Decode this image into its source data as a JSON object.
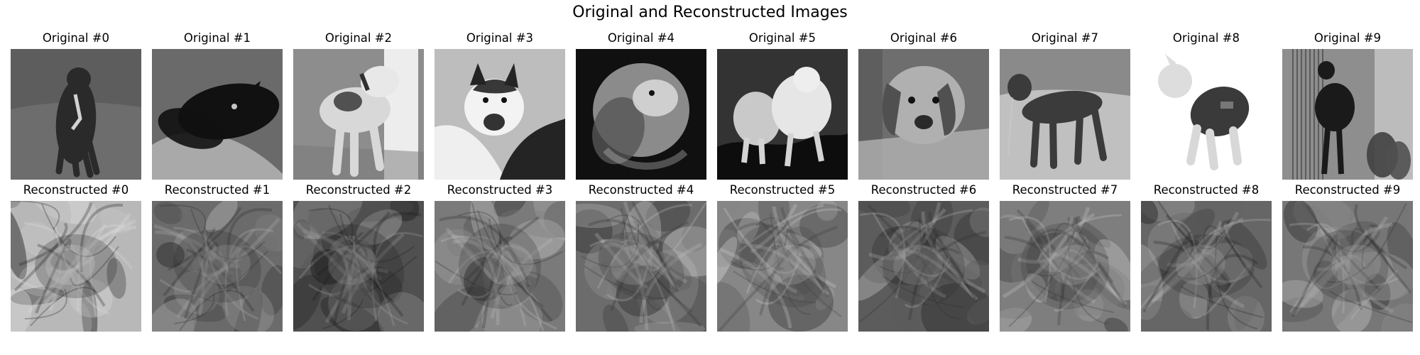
{
  "figure": {
    "title": "Original and Reconstructed Images"
  },
  "originals": [
    {
      "label": "Original #0",
      "subject": "dark greyhound-like dog walking on grass",
      "tone": [
        "#5d5d5d",
        "#7a7a7a",
        "#2a2a2a"
      ]
    },
    {
      "label": "Original #1",
      "subject": "black dog lying behind a light cushion",
      "tone": [
        "#6a6a6a",
        "#a9a9a9",
        "#111111"
      ]
    },
    {
      "label": "Original #2",
      "subject": "white dog with dark collar standing indoors",
      "tone": [
        "#8d8d8d",
        "#d8d8d8",
        "#2f2f2f"
      ]
    },
    {
      "label": "Original #3",
      "subject": "husky lying on white bedding",
      "tone": [
        "#bdbdbd",
        "#efefef",
        "#242424"
      ]
    },
    {
      "label": "Original #4",
      "subject": "golden retriever head on dark background",
      "tone": [
        "#101010",
        "#8b8b8b",
        "#d6d6d6"
      ]
    },
    {
      "label": "Original #5",
      "subject": "small white dog on dark rocks",
      "tone": [
        "#333333",
        "#c9c9c9",
        "#0d0d0d"
      ]
    },
    {
      "label": "Original #6",
      "subject": "basset-type dog sitting on a rug",
      "tone": [
        "#6e6e6e",
        "#b8b8b8",
        "#505050"
      ]
    },
    {
      "label": "Original #7",
      "subject": "long-haired dog standing in a field",
      "tone": [
        "#8a8a8a",
        "#d2d2d2",
        "#3b3b3b"
      ]
    },
    {
      "label": "Original #8",
      "subject": "small fluffy dog wearing a dark coat",
      "tone": [
        "#ffffff",
        "#dddddd",
        "#3a3a3a"
      ]
    },
    {
      "label": "Original #9",
      "subject": "dark dog standing in doorway",
      "tone": [
        "#8e8e8e",
        "#bdbdbd",
        "#1a1a1a"
      ]
    }
  ],
  "reconstructions": [
    {
      "label": "Reconstructed #0",
      "tone": [
        "#b8b8b8",
        "#e0e0e0",
        "#1e1e1e"
      ]
    },
    {
      "label": "Reconstructed #1",
      "tone": [
        "#6b6b6b",
        "#b0b0b0",
        "#2a2a2a"
      ]
    },
    {
      "label": "Reconstructed #2",
      "tone": [
        "#505050",
        "#a3a3a3",
        "#1c1c1c"
      ]
    },
    {
      "label": "Reconstructed #3",
      "tone": [
        "#7a7a7a",
        "#bdbdbd",
        "#2b2b2b"
      ]
    },
    {
      "label": "Reconstructed #4",
      "tone": [
        "#6c6c6c",
        "#c0c0c0",
        "#333333"
      ]
    },
    {
      "label": "Reconstructed #5",
      "tone": [
        "#878787",
        "#d0d0d0",
        "#3d3d3d"
      ]
    },
    {
      "label": "Reconstructed #6",
      "tone": [
        "#5c5c5c",
        "#b6b6b6",
        "#2d2d2d"
      ]
    },
    {
      "label": "Reconstructed #7",
      "tone": [
        "#7e7e7e",
        "#c9c9c9",
        "#363636"
      ]
    },
    {
      "label": "Reconstructed #8",
      "tone": [
        "#666666",
        "#b9b9b9",
        "#242424"
      ]
    },
    {
      "label": "Reconstructed #9",
      "tone": [
        "#777777",
        "#bbbbbb",
        "#2f2f2f"
      ]
    }
  ]
}
